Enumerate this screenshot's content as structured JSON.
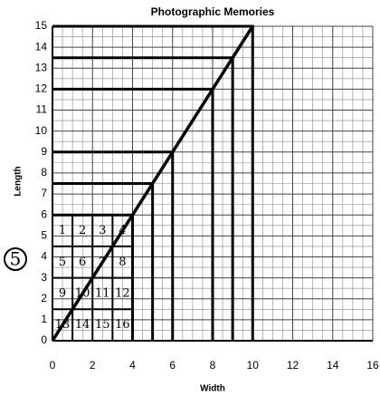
{
  "chart_data": {
    "type": "line",
    "title": "Photographic Memories",
    "x_label": "Width",
    "y_label": "Length",
    "x": [
      4,
      5,
      6,
      8,
      9,
      10
    ],
    "series": [
      {
        "name": "Length",
        "color": "#000000",
        "values": [
          6,
          7.5,
          9,
          12,
          13.5,
          15
        ]
      }
    ],
    "xlim": [
      0,
      16
    ],
    "ylim": [
      0,
      15
    ],
    "xticks": [
      0,
      2,
      4,
      6,
      8,
      10,
      12,
      14,
      16
    ],
    "yticks": [
      0,
      1,
      2,
      3,
      4,
      5,
      6,
      7,
      8,
      9,
      10,
      11,
      12,
      13,
      14,
      15
    ],
    "grid": true,
    "cell_labels": [
      "1",
      "2",
      "3",
      "4",
      "5",
      "6",
      "7",
      "8",
      "9",
      "10",
      "11",
      "12",
      "13",
      "14",
      "15",
      "16"
    ],
    "annotations": [
      "5"
    ]
  }
}
